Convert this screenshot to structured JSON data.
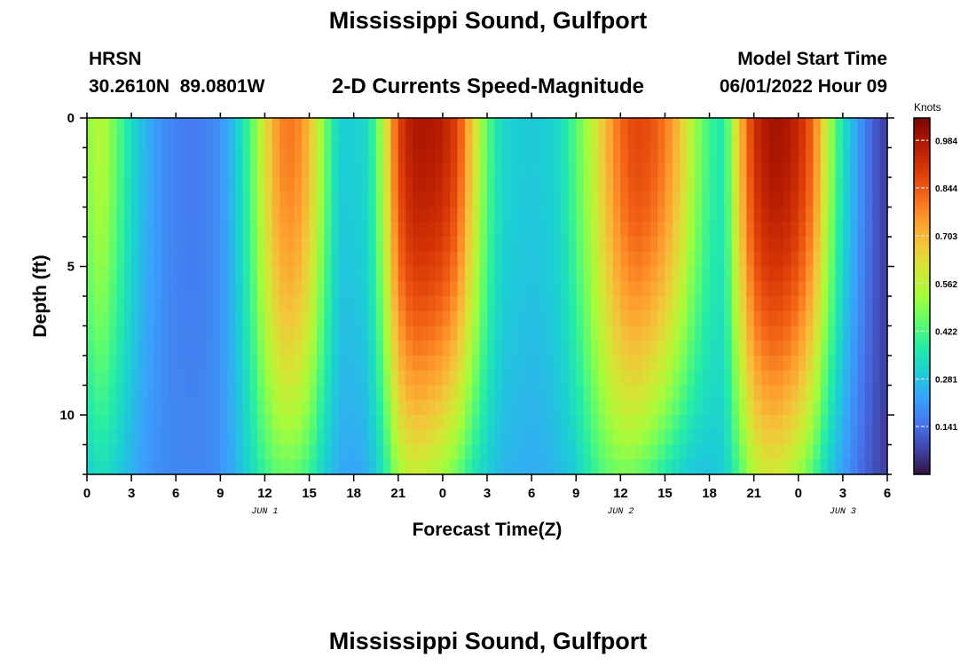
{
  "header": {
    "title": "Mississippi Sound, Gulfport",
    "station": "HRSN",
    "coords": "30.2610N  89.0801W",
    "subtitle": "2-D Currents Speed-Magnitude",
    "model_label": "Model Start Time",
    "model_time": "06/01/2022 Hour 09",
    "repeat_title": "Mississippi Sound, Gulfport"
  },
  "chart_data": {
    "type": "heatmap",
    "title": "Mississippi Sound, Gulfport",
    "subtitle": "2-D Currents Speed-Magnitude",
    "xlabel": "Forecast Time(Z)",
    "ylabel": "Depth (ft)",
    "x_ticks": [
      "0",
      "3",
      "6",
      "9",
      "12",
      "15",
      "18",
      "21",
      "0",
      "3",
      "6",
      "9",
      "12",
      "15",
      "18",
      "21",
      "0",
      "3",
      "6"
    ],
    "x_dates": [
      {
        "label": "JUN 1",
        "hour": 12
      },
      {
        "label": "JUN 2",
        "hour": 36
      },
      {
        "label": "JUN 3",
        "hour": 51
      }
    ],
    "xlim": [
      0,
      54
    ],
    "y_ticks": [
      "0",
      "5",
      "10"
    ],
    "ylim": [
      0,
      12
    ],
    "y_inverted": true,
    "colorbar": {
      "label": "Knots",
      "ticks": [
        "0.141",
        "0.281",
        "0.422",
        "0.562",
        "0.703",
        "0.844",
        "0.984"
      ],
      "range": [
        0,
        1.05
      ]
    },
    "colorscale": [
      "#30123b",
      "#4145ab",
      "#4675ed",
      "#39a2fc",
      "#1bcfd4",
      "#24eca6",
      "#61fc6c",
      "#a4fc3b",
      "#d1e834",
      "#f3c63a",
      "#fe9b2d",
      "#f36315",
      "#d93806",
      "#b11901",
      "#7a0403"
    ],
    "surface_speed_knots": [
      0.5,
      0.56,
      0.45,
      0.33,
      0.25,
      0.2,
      0.17,
      0.16,
      0.17,
      0.2,
      0.28,
      0.42,
      0.62,
      0.78,
      0.8,
      0.7,
      0.48,
      0.3,
      0.3,
      0.33,
      0.55,
      0.88,
      0.98,
      0.98,
      0.96,
      0.88,
      0.66,
      0.44,
      0.32,
      0.3,
      0.29,
      0.3,
      0.33,
      0.44,
      0.55,
      0.7,
      0.82,
      0.88,
      0.86,
      0.8,
      0.68,
      0.52,
      0.4,
      0.36,
      0.68,
      0.92,
      0.99,
      0.99,
      0.94,
      0.82,
      0.55,
      0.34,
      0.22,
      0.12,
      0.06
    ],
    "bottom_speed_knots": [
      0.3,
      0.34,
      0.3,
      0.25,
      0.21,
      0.19,
      0.18,
      0.18,
      0.18,
      0.2,
      0.25,
      0.32,
      0.4,
      0.45,
      0.45,
      0.4,
      0.3,
      0.24,
      0.23,
      0.25,
      0.35,
      0.52,
      0.58,
      0.56,
      0.52,
      0.45,
      0.36,
      0.3,
      0.26,
      0.25,
      0.24,
      0.25,
      0.27,
      0.3,
      0.38,
      0.44,
      0.47,
      0.46,
      0.42,
      0.36,
      0.31,
      0.28,
      0.28,
      0.3,
      0.42,
      0.55,
      0.6,
      0.58,
      0.52,
      0.42,
      0.3,
      0.22,
      0.15,
      0.1,
      0.06
    ]
  }
}
